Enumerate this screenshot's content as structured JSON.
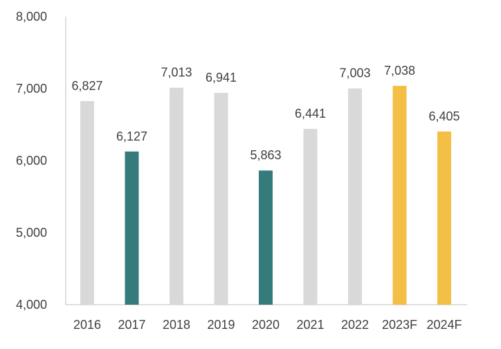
{
  "chart_data": {
    "type": "bar",
    "categories": [
      "2016",
      "2017",
      "2018",
      "2019",
      "2020",
      "2021",
      "2022",
      "2023F",
      "2024F"
    ],
    "values": [
      6827,
      6127,
      7013,
      6941,
      5863,
      6441,
      7003,
      7038,
      6405
    ],
    "value_labels": [
      "6,827",
      "6,127",
      "7,013",
      "6,941",
      "5,863",
      "6,441",
      "7,003",
      "7,038",
      "6,405"
    ],
    "bar_colors": [
      "#d9d9d9",
      "#367b7c",
      "#d9d9d9",
      "#d9d9d9",
      "#367b7c",
      "#d9d9d9",
      "#d9d9d9",
      "#f4bf45",
      "#f4bf45"
    ],
    "y_ticks": [
      4000,
      5000,
      6000,
      7000,
      8000
    ],
    "y_tick_labels": [
      "4,000",
      "5,000",
      "6,000",
      "7,000",
      "8,000"
    ],
    "ylim": [
      4000,
      8000
    ],
    "grid": false,
    "legend": "none",
    "colors": {
      "axis": "#bfbfbf",
      "text": "#404040"
    }
  }
}
